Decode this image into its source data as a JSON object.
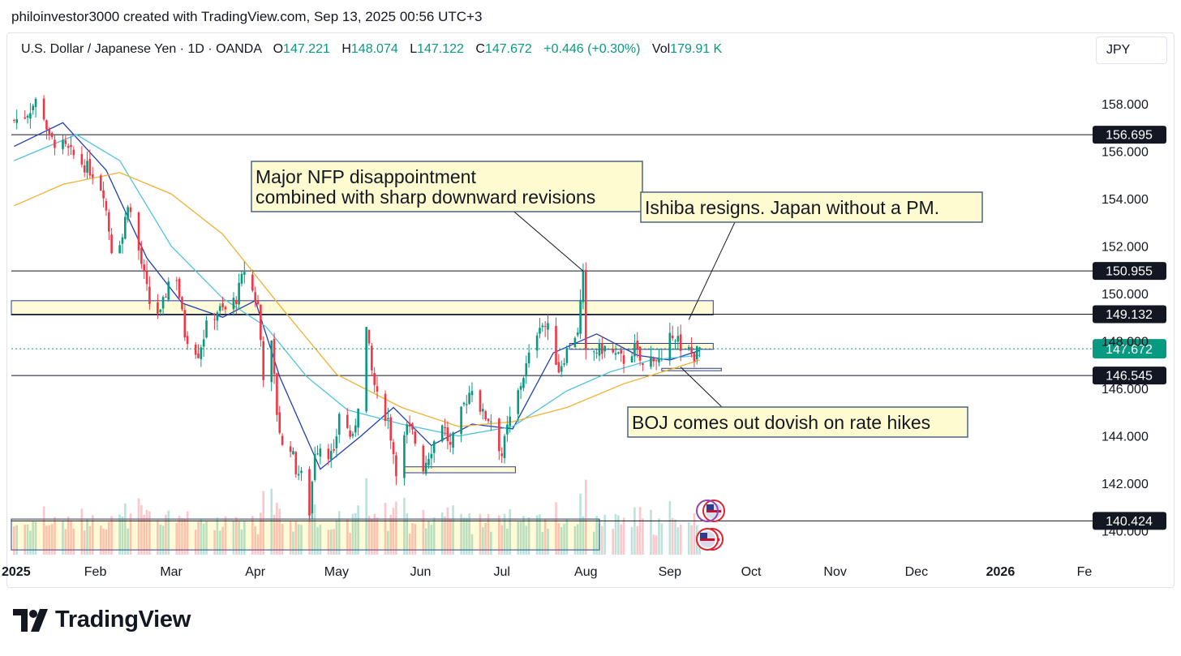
{
  "header": {
    "credit": "philoinvestor3000 created with TradingView.com, Sep 13, 2025 00:56 UTC+3"
  },
  "legend": {
    "symbol": "U.S. Dollar / Japanese Yen · 1D · OANDA",
    "open_label": "O",
    "open": "147.221",
    "high_label": "H",
    "high": "148.074",
    "low_label": "L",
    "low": "147.122",
    "close_label": "C",
    "close": "147.672",
    "change": "+0.446 (+0.30%)",
    "vol_label": "Vol",
    "vol": "179.91 K"
  },
  "currency_button": "JPY",
  "brand": {
    "name": "TradingView"
  },
  "colors": {
    "up": "#089981",
    "down": "#f23645",
    "ma_fast": "#1e3fb5",
    "ma_mid": "#4fc3e0",
    "ma_slow": "#f0b232",
    "zone_fill": "#fff9d0",
    "zone_border": "#2b3d8c",
    "callout_fill": "#fffbd0",
    "callout_border": "#4a6583",
    "last_price": "#089981"
  },
  "chart_data": {
    "type": "candlestick",
    "symbol": "USDJPY",
    "interval": "1D",
    "ylim": [
      139.0,
      159.5
    ],
    "y_ticks": [
      140.0,
      142.0,
      144.0,
      146.0,
      148.0,
      150.0,
      152.0,
      154.0,
      156.0,
      158.0
    ],
    "y_tick_labels": [
      "140.000",
      "142.000",
      "144.000",
      "146.000",
      "148.000",
      "150.000",
      "152.000",
      "154.000",
      "156.000",
      "158.000"
    ],
    "x_range": [
      "2025-01-01",
      "2026-02-01"
    ],
    "x_ticks": [
      {
        "date": "2025-01-01",
        "label": "2025",
        "bold": true
      },
      {
        "date": "2025-02-01",
        "label": "Feb"
      },
      {
        "date": "2025-03-01",
        "label": "Mar"
      },
      {
        "date": "2025-04-01",
        "label": "Apr"
      },
      {
        "date": "2025-05-01",
        "label": "May"
      },
      {
        "date": "2025-06-01",
        "label": "Jun"
      },
      {
        "date": "2025-07-01",
        "label": "Jul"
      },
      {
        "date": "2025-08-01",
        "label": "Aug"
      },
      {
        "date": "2025-09-01",
        "label": "Sep"
      },
      {
        "date": "2025-10-01",
        "label": "Oct"
      },
      {
        "date": "2025-11-01",
        "label": "Nov"
      },
      {
        "date": "2025-12-01",
        "label": "Dec"
      },
      {
        "date": "2026-01-01",
        "label": "2026",
        "bold": true
      },
      {
        "date": "2026-02-01",
        "label": "Fe"
      }
    ],
    "price_path": [
      [
        "2025-01-02",
        157.3
      ],
      [
        "2025-01-06",
        157.5
      ],
      [
        "2025-01-10",
        158.1
      ],
      [
        "2025-01-13",
        157.5
      ],
      [
        "2025-01-15",
        156.5
      ],
      [
        "2025-01-20",
        156.2
      ],
      [
        "2025-01-24",
        155.8
      ],
      [
        "2025-01-29",
        155.3
      ],
      [
        "2025-01-31",
        155.1
      ],
      [
        "2025-02-04",
        154.3
      ],
      [
        "2025-02-07",
        151.9
      ],
      [
        "2025-02-11",
        152.4
      ],
      [
        "2025-02-13",
        153.9
      ],
      [
        "2025-02-17",
        151.8
      ],
      [
        "2025-02-21",
        149.6
      ],
      [
        "2025-02-25",
        149.1
      ],
      [
        "2025-02-28",
        150.5
      ],
      [
        "2025-03-03",
        150.7
      ],
      [
        "2025-03-06",
        148.3
      ],
      [
        "2025-03-11",
        147.5
      ],
      [
        "2025-03-14",
        148.6
      ],
      [
        "2025-03-18",
        149.3
      ],
      [
        "2025-03-21",
        149.3
      ],
      [
        "2025-03-25",
        149.8
      ],
      [
        "2025-03-28",
        151.0
      ],
      [
        "2025-04-02",
        149.5
      ],
      [
        "2025-04-04",
        146.6
      ],
      [
        "2025-04-07",
        147.8
      ],
      [
        "2025-04-09",
        145.0
      ],
      [
        "2025-04-11",
        143.5
      ],
      [
        "2025-04-14",
        143.6
      ],
      [
        "2025-04-16",
        142.6
      ],
      [
        "2025-04-18",
        142.3
      ],
      [
        "2025-04-21",
        140.8
      ],
      [
        "2025-04-23",
        143.4
      ],
      [
        "2025-04-25",
        143.6
      ],
      [
        "2025-04-30",
        143.1
      ],
      [
        "2025-05-02",
        145.0
      ],
      [
        "2025-05-07",
        143.8
      ],
      [
        "2025-05-09",
        145.4
      ],
      [
        "2025-05-12",
        148.5
      ],
      [
        "2025-05-14",
        146.7
      ],
      [
        "2025-05-16",
        145.6
      ],
      [
        "2025-05-20",
        144.7
      ],
      [
        "2025-05-23",
        142.6
      ],
      [
        "2025-05-27",
        144.3
      ],
      [
        "2025-05-29",
        144.1
      ],
      [
        "2025-06-02",
        142.7
      ],
      [
        "2025-06-05",
        143.5
      ],
      [
        "2025-06-09",
        144.6
      ],
      [
        "2025-06-12",
        143.5
      ],
      [
        "2025-06-17",
        145.3
      ],
      [
        "2025-06-20",
        146.1
      ],
      [
        "2025-06-24",
        144.9
      ],
      [
        "2025-06-27",
        144.7
      ],
      [
        "2025-07-01",
        143.2
      ],
      [
        "2025-07-03",
        144.3
      ],
      [
        "2025-07-08",
        146.2
      ],
      [
        "2025-07-11",
        147.3
      ],
      [
        "2025-07-15",
        148.8
      ],
      [
        "2025-07-18",
        148.5
      ],
      [
        "2025-07-22",
        146.8
      ],
      [
        "2025-07-25",
        147.6
      ],
      [
        "2025-07-29",
        148.5
      ],
      [
        "2025-07-31",
        150.7
      ],
      [
        "2025-08-01",
        147.4
      ],
      [
        "2025-08-05",
        147.6
      ],
      [
        "2025-08-08",
        147.7
      ],
      [
        "2025-08-13",
        147.3
      ],
      [
        "2025-08-15",
        147.2
      ],
      [
        "2025-08-19",
        147.7
      ],
      [
        "2025-08-22",
        146.9
      ],
      [
        "2025-08-26",
        147.4
      ],
      [
        "2025-08-29",
        147.0
      ],
      [
        "2025-09-02",
        148.4
      ],
      [
        "2025-09-04",
        148.1
      ],
      [
        "2025-09-05",
        147.4
      ],
      [
        "2025-09-08",
        147.6
      ],
      [
        "2025-09-10",
        147.4
      ],
      [
        "2025-09-12",
        147.672
      ]
    ],
    "moving_averages": [
      {
        "color_key": "ma_fast",
        "values": [
          [
            "2025-01-02",
            156.2
          ],
          [
            "2025-01-20",
            157.2
          ],
          [
            "2025-02-05",
            155.2
          ],
          [
            "2025-02-20",
            151.5
          ],
          [
            "2025-03-05",
            149.6
          ],
          [
            "2025-03-20",
            149.0
          ],
          [
            "2025-04-01",
            149.7
          ],
          [
            "2025-04-10",
            146.5
          ],
          [
            "2025-04-25",
            142.6
          ],
          [
            "2025-05-10",
            144.0
          ],
          [
            "2025-05-22",
            145.2
          ],
          [
            "2025-06-05",
            143.6
          ],
          [
            "2025-06-20",
            144.5
          ],
          [
            "2025-07-05",
            144.3
          ],
          [
            "2025-07-20",
            147.5
          ],
          [
            "2025-08-05",
            148.3
          ],
          [
            "2025-08-20",
            147.4
          ],
          [
            "2025-09-01",
            147.2
          ],
          [
            "2025-09-12",
            147.6
          ]
        ]
      },
      {
        "color_key": "ma_mid",
        "values": [
          [
            "2025-01-02",
            155.6
          ],
          [
            "2025-01-25",
            156.7
          ],
          [
            "2025-02-10",
            155.6
          ],
          [
            "2025-03-01",
            152.0
          ],
          [
            "2025-03-20",
            149.8
          ],
          [
            "2025-04-05",
            148.6
          ],
          [
            "2025-04-20",
            146.5
          ],
          [
            "2025-05-05",
            145.1
          ],
          [
            "2025-05-25",
            144.5
          ],
          [
            "2025-06-15",
            144.0
          ],
          [
            "2025-07-05",
            144.4
          ],
          [
            "2025-07-25",
            145.9
          ],
          [
            "2025-08-10",
            146.7
          ],
          [
            "2025-08-25",
            147.2
          ],
          [
            "2025-09-12",
            147.4
          ]
        ]
      },
      {
        "color_key": "ma_slow",
        "values": [
          [
            "2025-01-02",
            153.7
          ],
          [
            "2025-01-20",
            154.6
          ],
          [
            "2025-02-10",
            155.1
          ],
          [
            "2025-03-01",
            154.2
          ],
          [
            "2025-03-20",
            152.5
          ],
          [
            "2025-04-10",
            149.5
          ],
          [
            "2025-05-01",
            146.6
          ],
          [
            "2025-05-25",
            145.2
          ],
          [
            "2025-06-15",
            144.4
          ],
          [
            "2025-07-05",
            144.6
          ],
          [
            "2025-07-25",
            145.2
          ],
          [
            "2025-08-15",
            146.2
          ],
          [
            "2025-09-01",
            146.8
          ],
          [
            "2025-09-12",
            147.2
          ]
        ]
      }
    ],
    "horizontal_levels": [
      {
        "price": 156.695,
        "label": "156.695"
      },
      {
        "price": 150.955,
        "label": "150.955"
      },
      {
        "price": 149.132,
        "label": "149.132"
      },
      {
        "price": 146.545,
        "label": "146.545"
      },
      {
        "price": 140.424,
        "label": "140.424"
      }
    ],
    "last_price": {
      "price": 147.672,
      "label": "147.672"
    },
    "zones": [
      {
        "from": "2025-01-01",
        "to": "2025-09-17",
        "low": 149.1,
        "high": 149.7
      },
      {
        "from": "2025-01-01",
        "to": "2025-08-06",
        "low": 139.2,
        "high": 140.5
      },
      {
        "from": "2025-05-26",
        "to": "2025-07-06",
        "low": 142.45,
        "high": 142.7
      },
      {
        "from": "2025-07-26",
        "to": "2025-09-17",
        "low": 147.65,
        "high": 147.9
      },
      {
        "from": "2025-08-29",
        "to": "2025-09-20",
        "low": 146.75,
        "high": 146.85
      }
    ],
    "annotations": [
      {
        "lines": [
          "Major NFP disappointment",
          "combined with sharp downward revisions"
        ],
        "target": [
          "2025-07-31",
          150.95
        ]
      },
      {
        "lines": [
          "Ishiba resigns. Japan without a PM."
        ],
        "target": [
          "2025-09-08",
          148.9
        ]
      },
      {
        "lines": [
          "BOJ comes out dovish on rate hikes"
        ],
        "target": [
          "2025-09-05",
          146.9
        ]
      }
    ],
    "event_flags": [
      {
        "date": "2025-09-18",
        "row": "upper",
        "count": 1
      },
      {
        "date": "2025-09-16",
        "row": "lower",
        "count": 2
      }
    ],
    "volume_note": "volume histogram overlay in lower band"
  }
}
